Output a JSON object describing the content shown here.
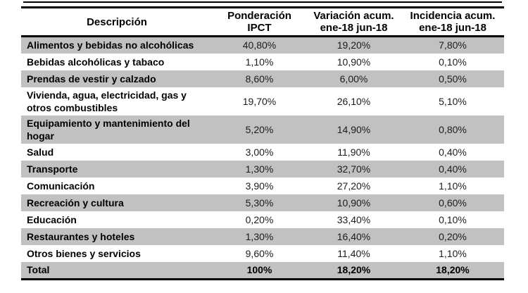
{
  "table": {
    "headers": [
      {
        "line1": "Descripción",
        "line2": ""
      },
      {
        "line1": "Ponderación",
        "line2": "IPCT"
      },
      {
        "line1": "Variación acum.",
        "line2": "ene-18 jun-18"
      },
      {
        "line1": "Incidencia acum.",
        "line2": "ene-18 jun-18"
      }
    ],
    "rows": [
      {
        "desc1": "Alimentos y bebidas no alcohólicas",
        "desc2": "",
        "pond": "40,80%",
        "var": "19,20%",
        "inc": "7,80%"
      },
      {
        "desc1": "Bebidas alcohólicas y tabaco",
        "desc2": "",
        "pond": "1,10%",
        "var": "10,90%",
        "inc": "0,10%"
      },
      {
        "desc1": "Prendas de vestir y calzado",
        "desc2": "",
        "pond": "8,60%",
        "var": "6,00%",
        "inc": "0,50%"
      },
      {
        "desc1": "Vivienda, agua, electricidad, gas y",
        "desc2": "otros combustibles",
        "pond": "19,70%",
        "var": "26,10%",
        "inc": "5,10%"
      },
      {
        "desc1": "Equipamiento y mantenimiento del",
        "desc2": "hogar",
        "pond": "5,20%",
        "var": "14,90%",
        "inc": "0,80%"
      },
      {
        "desc1": "Salud",
        "desc2": "",
        "pond": "3,00%",
        "var": "11,90%",
        "inc": "0,40%"
      },
      {
        "desc1": "Transporte",
        "desc2": "",
        "pond": "1,30%",
        "var": "32,70%",
        "inc": "0,40%"
      },
      {
        "desc1": "Comunicación",
        "desc2": "",
        "pond": "3,90%",
        "var": "27,20%",
        "inc": "1,10%"
      },
      {
        "desc1": "Recreación y cultura",
        "desc2": "",
        "pond": "5,30%",
        "var": "10,90%",
        "inc": "0,60%"
      },
      {
        "desc1": "Educación",
        "desc2": "",
        "pond": "0,20%",
        "var": "33,40%",
        "inc": "0,10%"
      },
      {
        "desc1": "Restaurantes y hoteles",
        "desc2": "",
        "pond": "1,30%",
        "var": "16,40%",
        "inc": "0,20%"
      },
      {
        "desc1": "Otros bienes y servicios",
        "desc2": "",
        "pond": "9,60%",
        "var": "11,40%",
        "inc": "1,10%"
      },
      {
        "desc1": "Total",
        "desc2": "",
        "pond": "100%",
        "var": "18,20%",
        "inc": "18,20%"
      }
    ],
    "shade_color": "#c1c1c1",
    "border_color": "#000000"
  }
}
